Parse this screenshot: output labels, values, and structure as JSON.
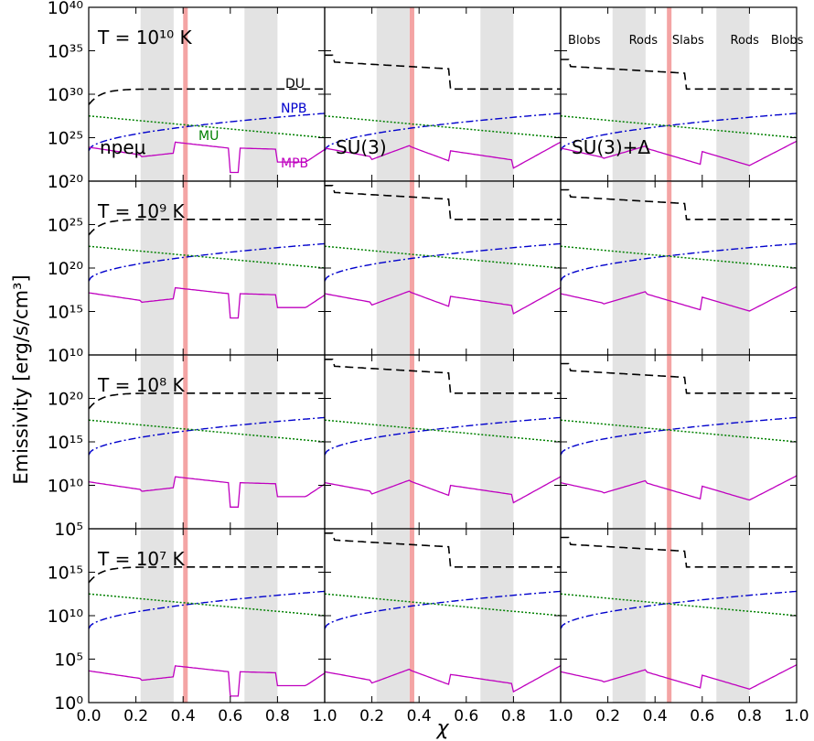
{
  "figure": {
    "ylabel": "Emissivity [erg/s/cm³]",
    "xlabel": "χ",
    "x_tick_labels": [
      "0.0",
      "0.2",
      "0.4",
      "0.6",
      "0.8",
      "1.0"
    ],
    "row_labels": [
      "T = 10¹⁰ K",
      "T = 10⁹ K",
      "T = 10⁸ K",
      "T = 10⁷ K"
    ],
    "column_labels": [
      "npeμ",
      "SU(3)",
      "SU(3)+Δ"
    ],
    "phase_labels": [
      "Blobs",
      "Rods",
      "Slabs",
      "Rods",
      "Blobs"
    ],
    "curve_labels": {
      "du": "DU",
      "npb": "NPB",
      "mu": "MU",
      "mpb": "MPB"
    },
    "colors": {
      "du": "#000000",
      "npb": "#0000cc",
      "mu": "#008000",
      "mpb": "#bf00bf",
      "pasta_band": "#e3e3e3",
      "pasta_line": "#f4a4a4"
    }
  },
  "chart_data": {
    "type": "line",
    "layout": "4x3 grid of panels sharing x and y axes",
    "xlim": [
      0.0,
      1.0
    ],
    "xlabel": "χ",
    "ylabel": "Emissivity [erg/s/cm³]",
    "yscale": "log",
    "grey_bands": [
      [
        0.22,
        0.36
      ],
      [
        0.66,
        0.8
      ]
    ],
    "rows": [
      {
        "label": "T = 10¹⁰ K",
        "ylim_exp": [
          20,
          40
        ],
        "y_tick_exps": [
          20,
          25,
          30,
          35,
          40
        ],
        "y_tick_labels": [
          "10²⁰",
          "10²⁵",
          "10³⁰",
          "10³⁵",
          "10⁴⁰"
        ]
      },
      {
        "label": "T = 10⁹ K",
        "ylim_exp": [
          10,
          30
        ],
        "y_tick_exps": [
          10,
          15,
          20,
          25
        ],
        "y_tick_labels": [
          "10¹⁰",
          "10¹⁵",
          "10²⁰",
          "10²⁵"
        ]
      },
      {
        "label": "T = 10⁸ K",
        "ylim_exp": [
          5,
          25
        ],
        "y_tick_exps": [
          5,
          10,
          15,
          20
        ],
        "y_tick_labels": [
          "10⁵",
          "10¹⁰",
          "10¹⁵",
          "10²⁰"
        ]
      },
      {
        "label": "T = 10⁷ K",
        "ylim_exp": [
          0,
          20
        ],
        "y_tick_exps": [
          0,
          5,
          10,
          15
        ],
        "y_tick_labels": [
          "10⁰",
          "10⁵",
          "10¹⁰",
          "10¹⁵"
        ]
      }
    ],
    "columns": [
      {
        "label": "npeμ",
        "red_line_x": 0.41,
        "du_start_exp": 28.8,
        "du_plateau_exp": 30.6,
        "du_profile": "rising",
        "mpb_profile": "npe"
      },
      {
        "label": "SU(3)",
        "red_line_x": 0.37,
        "du_start_exp": 34.5,
        "du_plateau_exp": 30.6,
        "du_profile": "decreasing",
        "mpb_profile": "su3"
      },
      {
        "label": "SU(3)+Δ",
        "red_line_x": 0.46,
        "du_start_exp": 34.0,
        "du_plateau_exp": 30.6,
        "du_profile": "decreasing",
        "mpb_profile": "su3d"
      }
    ],
    "series": [
      {
        "name": "DU",
        "style": "dashed",
        "color": "#000000"
      },
      {
        "name": "NPB",
        "style": "dash-dot",
        "color": "#0000cc",
        "log10_at_x0": 23.5,
        "log10_at_x1": 27.8
      },
      {
        "name": "MU",
        "style": "dotted",
        "color": "#008000",
        "log10_at_x0": 27.5,
        "log10_at_x1": 25.0
      },
      {
        "name": "MPB",
        "style": "solid",
        "color": "#bf00bf"
      }
    ],
    "row_exponent_offsets": [
      0,
      -5,
      -10,
      -15
    ]
  }
}
